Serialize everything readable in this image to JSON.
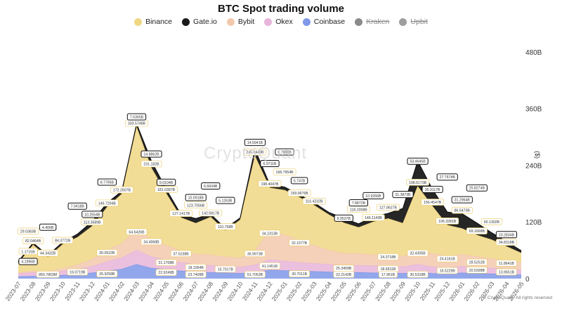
{
  "chart_data": {
    "type": "area",
    "title": "BTC Spot trading volume",
    "xlabel": "",
    "ylabel": "",
    "y_unit_label": "($)",
    "ylim": [
      0,
      520
    ],
    "y_ticks": [
      "0",
      "120B",
      "240B",
      "360B",
      "480B"
    ],
    "y_tick_values": [
      0,
      120,
      240,
      360,
      480
    ],
    "x": [
      "2023-07",
      "2023-08",
      "2023-09",
      "2023-10",
      "2023-11",
      "2023-12",
      "2024-01",
      "2024-02",
      "2024-03",
      "2024-04",
      "2024-05",
      "2024-06",
      "2024-07",
      "2024-08",
      "2024-09",
      "2024-10",
      "2024-11",
      "2024-12",
      "2025-01",
      "2025-02",
      "2025-03",
      "2025-04",
      "2025-05",
      "2025-06",
      "2025-07",
      "2025-08",
      "2025-09",
      "2025-10",
      "2025-11",
      "2025-12",
      "2026-01",
      "2026-02",
      "2026-03",
      "2026-04",
      "2026-05"
    ],
    "stacked": true,
    "legend_position": "top-center",
    "grid": false,
    "series": [
      {
        "name": "Coinbase",
        "color": "#7f98e8",
        "values": [
          4,
          5,
          5,
          7,
          9,
          12,
          16,
          20,
          30,
          22,
          19,
          16,
          14,
          13,
          12,
          11,
          13,
          18,
          17,
          16,
          15,
          14,
          13,
          13,
          12,
          12,
          11,
          13,
          11,
          10,
          12,
          11,
          10,
          9,
          8
        ]
      },
      {
        "name": "Okex",
        "color": "#e7b5d9",
        "values": [
          6,
          8,
          7,
          9,
          11,
          14,
          20,
          24,
          30,
          24,
          21,
          18,
          16,
          15,
          14,
          13,
          16,
          22,
          20,
          18,
          17,
          16,
          15,
          15,
          15,
          15,
          14,
          17,
          14,
          13,
          14,
          13,
          12,
          11,
          10
        ]
      },
      {
        "name": "Bybit",
        "color": "#f3c9ae",
        "values": [
          2,
          3,
          3,
          6,
          9,
          15,
          25,
          30,
          45,
          38,
          30,
          25,
          22,
          22,
          20,
          20,
          30,
          62,
          55,
          48,
          38,
          30,
          25,
          25,
          23,
          25,
          22,
          30,
          28,
          25,
          25,
          23,
          20,
          18,
          16
        ]
      },
      {
        "name": "Binance",
        "color": "#f0d784",
        "values": [
          20,
          55,
          30,
          50,
          58,
          70,
          90,
          105,
          215,
          150,
          110,
          70,
          65,
          80,
          55,
          80,
          200,
          90,
          95,
          90,
          85,
          75,
          65,
          55,
          70,
          75,
          70,
          135,
          100,
          65,
          55,
          45,
          40,
          30,
          20
        ]
      },
      {
        "name": "Gate.io",
        "color": "#1a1a1a",
        "values": [
          4.2,
          4.5,
          4.4,
          5,
          7,
          10.3,
          8.8,
          6,
          7.6,
          14.9,
          9.0,
          6.5,
          10.1,
          6.7,
          5.1,
          4.5,
          14.6,
          7.0,
          6.8,
          5.7,
          5.5,
          5.0,
          9.95,
          7.9,
          10.9,
          11.0,
          31.4,
          53.5,
          35.9,
          27.8,
          31.3,
          25.8,
          15,
          10.3,
          5
        ]
      },
      {
        "name": "Kraken",
        "color": "#8a8a8a",
        "values": [
          1,
          1,
          1,
          1,
          1.5,
          2,
          2,
          2,
          3,
          2.5,
          2,
          2,
          2,
          2,
          2,
          2,
          3,
          4,
          4,
          3,
          3,
          3,
          3,
          3,
          3,
          3,
          3,
          20,
          15,
          10,
          8,
          6,
          4,
          3,
          2
        ]
      },
      {
        "name": "Upbit",
        "color": "#9e9e9e",
        "values": [
          0,
          0,
          0,
          0,
          0,
          0,
          0,
          0,
          0,
          0,
          0,
          0,
          0,
          0,
          0,
          0,
          0,
          0,
          0,
          0,
          0,
          0,
          0,
          0,
          0,
          0,
          0,
          0,
          0,
          0,
          0,
          0,
          0,
          0,
          0
        ]
      }
    ],
    "legend": [
      {
        "name": "Binance",
        "color": "#f0d784",
        "active": true
      },
      {
        "name": "Gate.io",
        "color": "#1a1a1a",
        "active": true
      },
      {
        "name": "Bybit",
        "color": "#f3c9ae",
        "active": true
      },
      {
        "name": "Okex",
        "color": "#e7b5d9",
        "active": true
      },
      {
        "name": "Coinbase",
        "color": "#7f98e8",
        "active": true
      },
      {
        "name": "Kraken",
        "color": "#8a8a8a",
        "active": false
      },
      {
        "name": "Upbit",
        "color": "#9e9e9e",
        "active": false
      }
    ],
    "data_labels": [
      {
        "text": "333.5748B",
        "series": "Binance",
        "i": 8,
        "y": 333.57,
        "boxed": false
      },
      {
        "text": "245.0443B",
        "series": "Binance",
        "i": 16,
        "y": 245.04,
        "boxed": false
      },
      {
        "text": "231.182B",
        "series": "Binance",
        "i": 9,
        "y": 231.18,
        "boxed": false
      },
      {
        "text": "198.4047B",
        "series": "Binance",
        "i": 17,
        "y": 198.4,
        "boxed": false
      },
      {
        "text": "198.6173B",
        "series": "Binance",
        "i": 27,
        "y": 198.62,
        "boxed": false
      },
      {
        "text": "181.0397B",
        "series": "Binance",
        "i": 10,
        "y": 181.04,
        "boxed": false
      },
      {
        "text": "172.2607B",
        "series": "Binance",
        "i": 7,
        "y": 172.26,
        "boxed": false
      },
      {
        "text": "168.7954B",
        "series": "Binance",
        "i": 18,
        "y": 168.8,
        "boxed": false
      },
      {
        "text": "159.0676B",
        "series": "Binance",
        "i": 19,
        "y": 159.07,
        "boxed": false
      },
      {
        "text": "156.4547B",
        "series": "Binance",
        "i": 28,
        "y": 156.45,
        "boxed": false
      },
      {
        "text": "146.7294B",
        "series": "Binance",
        "i": 6,
        "y": 146.73,
        "boxed": false
      },
      {
        "text": "146.1143B",
        "series": "Binance",
        "i": 24,
        "y": 146.11,
        "boxed": false
      },
      {
        "text": "142.5817B",
        "series": "Binance",
        "i": 13,
        "y": 142.58,
        "boxed": false
      },
      {
        "text": "127.1417B",
        "series": "Binance",
        "i": 11,
        "y": 127.14,
        "boxed": false
      },
      {
        "text": "127.8627B",
        "series": "Binance",
        "i": 25,
        "y": 127.86,
        "boxed": false
      },
      {
        "text": "123.7056B",
        "series": "Binance",
        "i": 12,
        "y": 123.71,
        "boxed": false
      },
      {
        "text": "118.2008B",
        "series": "Binance",
        "i": 23,
        "y": 118.2,
        "boxed": false
      },
      {
        "text": "116.4232B",
        "series": "Binance",
        "i": 20,
        "y": 116.42,
        "boxed": false
      },
      {
        "text": "113.3589B",
        "series": "Binance",
        "i": 5,
        "y": 113.36,
        "boxed": false
      },
      {
        "text": "110.758B",
        "series": "Binance",
        "i": 14,
        "y": 110.76,
        "boxed": false
      },
      {
        "text": "106.3281B",
        "series": "Binance",
        "i": 29,
        "y": 106.33,
        "boxed": false
      },
      {
        "text": "86.5473B",
        "series": "Binance",
        "i": 30,
        "y": 86.55,
        "boxed": false
      },
      {
        "text": "84.3772B",
        "series": "Binance",
        "i": 3,
        "y": 84.38,
        "boxed": false
      },
      {
        "text": "82.0464B",
        "series": "Binance",
        "i": 1,
        "y": 82.05,
        "boxed": false
      },
      {
        "text": "69.1668B",
        "series": "Binance",
        "i": 31,
        "y": 69.17,
        "boxed": false
      },
      {
        "text": "50.1302B",
        "series": "Binance",
        "i": 32,
        "y": 50.13,
        "boxed": false
      },
      {
        "text": "44.3432B",
        "series": "Binance",
        "i": 2,
        "y": 44.34,
        "boxed": false
      },
      {
        "text": "34.8318B",
        "series": "Binance",
        "i": 33,
        "y": 34.83,
        "boxed": false
      },
      {
        "text": "29.0383B",
        "series": "Binance",
        "i": 0,
        "y": 29.04,
        "boxed": false
      },
      {
        "text": "53.4645B",
        "series": "Gate.io",
        "i": 27,
        "y": 53.46,
        "boxed": true
      },
      {
        "text": "35.9117B",
        "series": "Gate.io",
        "i": 28,
        "y": 35.91,
        "boxed": true
      },
      {
        "text": "31.3873B",
        "series": "Gate.io",
        "i": 26,
        "y": 31.39,
        "boxed": true
      },
      {
        "text": "31.2964B",
        "series": "Gate.io",
        "i": 30,
        "y": 31.3,
        "boxed": true
      },
      {
        "text": "27.7674B",
        "series": "Gate.io",
        "i": 29,
        "y": 27.77,
        "boxed": true
      },
      {
        "text": "25.8274B",
        "series": "Gate.io",
        "i": 31,
        "y": 25.83,
        "boxed": true
      },
      {
        "text": "14.8862B",
        "series": "Gate.io",
        "i": 9,
        "y": 14.89,
        "boxed": true
      },
      {
        "text": "14.5941B",
        "series": "Gate.io",
        "i": 16,
        "y": 14.59,
        "boxed": true
      },
      {
        "text": "10.9266B",
        "series": "Gate.io",
        "i": 24,
        "y": 10.93,
        "boxed": true
      },
      {
        "text": "10.2834B",
        "series": "Gate.io",
        "i": 33,
        "y": 10.28,
        "boxed": true
      },
      {
        "text": "10.2554B",
        "series": "Gate.io",
        "i": 5,
        "y": 10.26,
        "boxed": true
      },
      {
        "text": "10.0918B",
        "series": "Gate.io",
        "i": 12,
        "y": 10.09,
        "boxed": true
      },
      {
        "text": "9.9537B",
        "series": "Gate.io",
        "i": 22,
        "y": 9.95,
        "boxed": true
      },
      {
        "text": "9.0104B",
        "series": "Gate.io",
        "i": 10,
        "y": 9.01,
        "boxed": true
      },
      {
        "text": "8.7795B",
        "series": "Gate.io",
        "i": 6,
        "y": 8.78,
        "boxed": true
      },
      {
        "text": "7.8872B",
        "series": "Gate.io",
        "i": 23,
        "y": 7.89,
        "boxed": true
      },
      {
        "text": "7.6365B",
        "series": "Gate.io",
        "i": 8,
        "y": 7.64,
        "boxed": true
      },
      {
        "text": "7.0418B",
        "series": "Gate.io",
        "i": 4,
        "y": 7.04,
        "boxed": true
      },
      {
        "text": "6.9711B",
        "series": "Gate.io",
        "i": 17,
        "y": 6.97,
        "boxed": true
      },
      {
        "text": "6.7908B",
        "series": "Gate.io",
        "i": 18,
        "y": 6.79,
        "boxed": true
      },
      {
        "text": "6.6604B",
        "series": "Gate.io",
        "i": 13,
        "y": 6.66,
        "boxed": true
      },
      {
        "text": "5.747B",
        "series": "Gate.io",
        "i": 19,
        "y": 5.75,
        "boxed": true
      },
      {
        "text": "5.1263B",
        "series": "Gate.io",
        "i": 14,
        "y": 5.13,
        "boxed": true
      },
      {
        "text": "4.406B",
        "series": "Gate.io",
        "i": 2,
        "y": 4.41,
        "boxed": true
      },
      {
        "text": "4.1996B",
        "series": "Gate.io",
        "i": 0,
        "y": 4.2,
        "boxed": true
      },
      {
        "text": "64.6426B",
        "series": "Bybit",
        "i": 8,
        "y": 64.64,
        "boxed": false
      },
      {
        "text": "36.9973B",
        "series": "Bybit",
        "i": 16,
        "y": 37.0,
        "boxed": false
      },
      {
        "text": "34.4968B",
        "series": "Bybit",
        "i": 9,
        "y": 34.5,
        "boxed": false
      },
      {
        "text": "34.2313B",
        "series": "Bybit",
        "i": 17,
        "y": 34.23,
        "boxed": false
      },
      {
        "text": "32.4305B",
        "series": "Bybit",
        "i": 27,
        "y": 32.43,
        "boxed": false
      },
      {
        "text": "32.1577B",
        "series": "Bybit",
        "i": 19,
        "y": 32.16,
        "boxed": false
      },
      {
        "text": "30.0522B",
        "series": "Bybit",
        "i": 6,
        "y": 30.05,
        "boxed": false
      },
      {
        "text": "24.4161B",
        "series": "Bybit",
        "i": 29,
        "y": 24.42,
        "boxed": false
      },
      {
        "text": "24.3718B",
        "series": "Bybit",
        "i": 25,
        "y": 24.37,
        "boxed": false
      },
      {
        "text": "37.5238B",
        "series": "Bybit",
        "i": 11,
        "y": 37.52,
        "boxed": false
      },
      {
        "text": "21.1708B",
        "series": "Okex",
        "i": 10,
        "y": 21.17,
        "boxed": false
      },
      {
        "text": "18.1954B",
        "series": "Okex",
        "i": 12,
        "y": 18.2,
        "boxed": false
      },
      {
        "text": "15.7017B",
        "series": "Okex",
        "i": 14,
        "y": 15.7,
        "boxed": false
      },
      {
        "text": "25.3409B",
        "series": "Okex",
        "i": 22,
        "y": 25.34,
        "boxed": false
      },
      {
        "text": "18.6511B",
        "series": "Okex",
        "i": 25,
        "y": 18.65,
        "boxed": false
      },
      {
        "text": "16.5229B",
        "series": "Okex",
        "i": 29,
        "y": 16.52,
        "boxed": false
      },
      {
        "text": "20.5398B",
        "series": "Okex",
        "i": 31,
        "y": 20.54,
        "boxed": false
      },
      {
        "text": "13.9651B",
        "series": "Okex",
        "i": 33,
        "y": 13.97,
        "boxed": false
      },
      {
        "text": "16.0719B",
        "series": "Okex",
        "i": 4,
        "y": 16.07,
        "boxed": false
      },
      {
        "text": "26.9258B",
        "series": "Coinbase",
        "i": 6,
        "y": 26.93,
        "boxed": false
      },
      {
        "text": "22.9249B",
        "series": "Coinbase",
        "i": 10,
        "y": 22.92,
        "boxed": false
      },
      {
        "text": "23.7409B",
        "series": "Coinbase",
        "i": 12,
        "y": 23.74,
        "boxed": false
      },
      {
        "text": "51.7053B",
        "series": "Coinbase",
        "i": 16,
        "y": 51.71,
        "boxed": false
      },
      {
        "text": "41.1451B",
        "series": "Coinbase",
        "i": 17,
        "y": 41.15,
        "boxed": false
      },
      {
        "text": "30.7011B",
        "series": "Coinbase",
        "i": 19,
        "y": 30.7,
        "boxed": false
      },
      {
        "text": "22.2142B",
        "series": "Coinbase",
        "i": 22,
        "y": 22.21,
        "boxed": false
      },
      {
        "text": "17.961B",
        "series": "Coinbase",
        "i": 25,
        "y": 17.96,
        "boxed": false
      },
      {
        "text": "30.5318B",
        "series": "Coinbase",
        "i": 27,
        "y": 30.53,
        "boxed": false
      },
      {
        "text": "28.5252B",
        "series": "Coinbase",
        "i": 31,
        "y": 28.53,
        "boxed": false
      },
      {
        "text": "11.8641B",
        "series": "Coinbase",
        "i": 33,
        "y": 11.86,
        "boxed": false
      },
      {
        "text": "850.7803M",
        "series": "Coinbase",
        "i": 2,
        "y": 0.85,
        "boxed": false
      },
      {
        "text": "1.1715B",
        "series": "Coinbase",
        "i": 0,
        "y": 1.17,
        "boxed": false
      }
    ]
  },
  "watermark": "CryptoQuant",
  "copyright": "© CryptoQuant. All rights reserved"
}
